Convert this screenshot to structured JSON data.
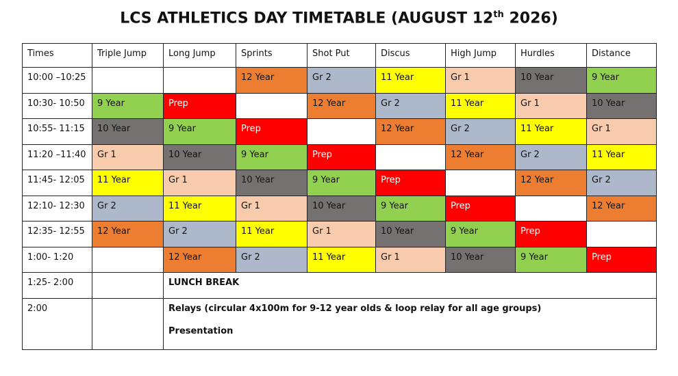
{
  "title_parts": [
    "LCS ATHLETICS DAY TIMETABLE (AUGUST 12",
    "th",
    " 2026)"
  ],
  "table": {
    "header": [
      "Times",
      "Triple Jump",
      "Long Jump",
      "Sprints",
      "Shot Put",
      "Discus",
      "High Jump",
      "Hurdles",
      "Distance"
    ],
    "rows": [
      [
        "10:00 –10:25",
        null,
        null,
        "12 Year",
        "Gr 2",
        "11 Year",
        "Gr 1",
        "10 Year",
        "9 Year"
      ],
      [
        "10:30- 10:50",
        "9 Year",
        "Prep",
        null,
        "12 Year",
        "Gr 2",
        "11 Year",
        "Gr 1",
        "10 Year"
      ],
      [
        "10:55- 11:15",
        "10 Year",
        "9 Year",
        "Prep",
        null,
        "12 Year",
        "Gr 2",
        "11 Year",
        "Gr 1"
      ],
      [
        "11:20 –11:40",
        "Gr 1",
        "10 Year",
        "9 Year",
        "Prep",
        null,
        "12 Year",
        "Gr 2",
        "11 Year"
      ],
      [
        "11:45- 12:05",
        "11 Year",
        "Gr 1",
        "10 Year",
        "9 Year",
        "Prep",
        null,
        "12 Year",
        "Gr 2"
      ],
      [
        "12:10- 12:30",
        "Gr 2",
        "11 Year",
        "Gr 1",
        "10 Year",
        "9 Year",
        "Prep",
        null,
        "12 Year"
      ],
      [
        "12:35- 12:55",
        "12 Year",
        "Gr 2",
        "11 Year",
        "Gr 1",
        "10 Year",
        "9 Year",
        "Prep",
        null
      ],
      [
        "1:00- 1:20",
        null,
        "12 Year",
        "Gr 2",
        "11 Year",
        "Gr 1",
        "10 Year",
        "9 Year",
        "Prep"
      ]
    ],
    "notes": [
      {
        "time": "1:25- 2:00",
        "lines": [
          "LUNCH BREAK"
        ]
      },
      {
        "time": "2:00",
        "lines": [
          "Relays (circular 4x100m for 9-12 year olds & loop relay for all age groups)",
          "Presentation"
        ]
      }
    ],
    "colors": {
      "12 Year": "#ed7d31",
      "Gr 2": "#adb9ca",
      "11 Year": "#ffff00",
      "Gr 1": "#f8cbad",
      "10 Year": "#767171",
      "9 Year": "#92d050",
      "Prep": "#ff0000"
    },
    "text_colors": {
      "Prep": "#ffffff"
    }
  }
}
